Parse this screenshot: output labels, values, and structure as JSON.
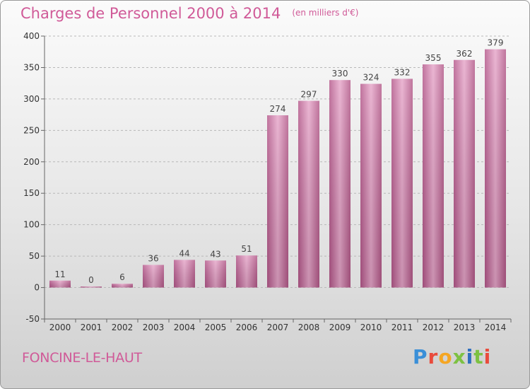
{
  "title": "Charges de Personnel 2000 à 2014",
  "unit": "(en milliers d'€)",
  "place": "FONCINE-LE-HAUT",
  "logo": [
    "P",
    "r",
    "o",
    "x",
    "i",
    "t",
    "i"
  ],
  "colors": {
    "bar": "#c9709f",
    "accent": "#d05a98"
  },
  "chart_data": {
    "type": "bar",
    "categories": [
      "2000",
      "2001",
      "2002",
      "2003",
      "2004",
      "2005",
      "2006",
      "2007",
      "2008",
      "2009",
      "2010",
      "2011",
      "2012",
      "2013",
      "2014"
    ],
    "values": [
      11,
      0,
      6,
      36,
      44,
      43,
      51,
      274,
      297,
      330,
      324,
      332,
      355,
      362,
      379
    ],
    "ylim": [
      -50,
      400
    ],
    "yticks": [
      -50,
      0,
      50,
      100,
      150,
      200,
      250,
      300,
      350,
      400
    ],
    "grid": true,
    "legend": "none"
  }
}
